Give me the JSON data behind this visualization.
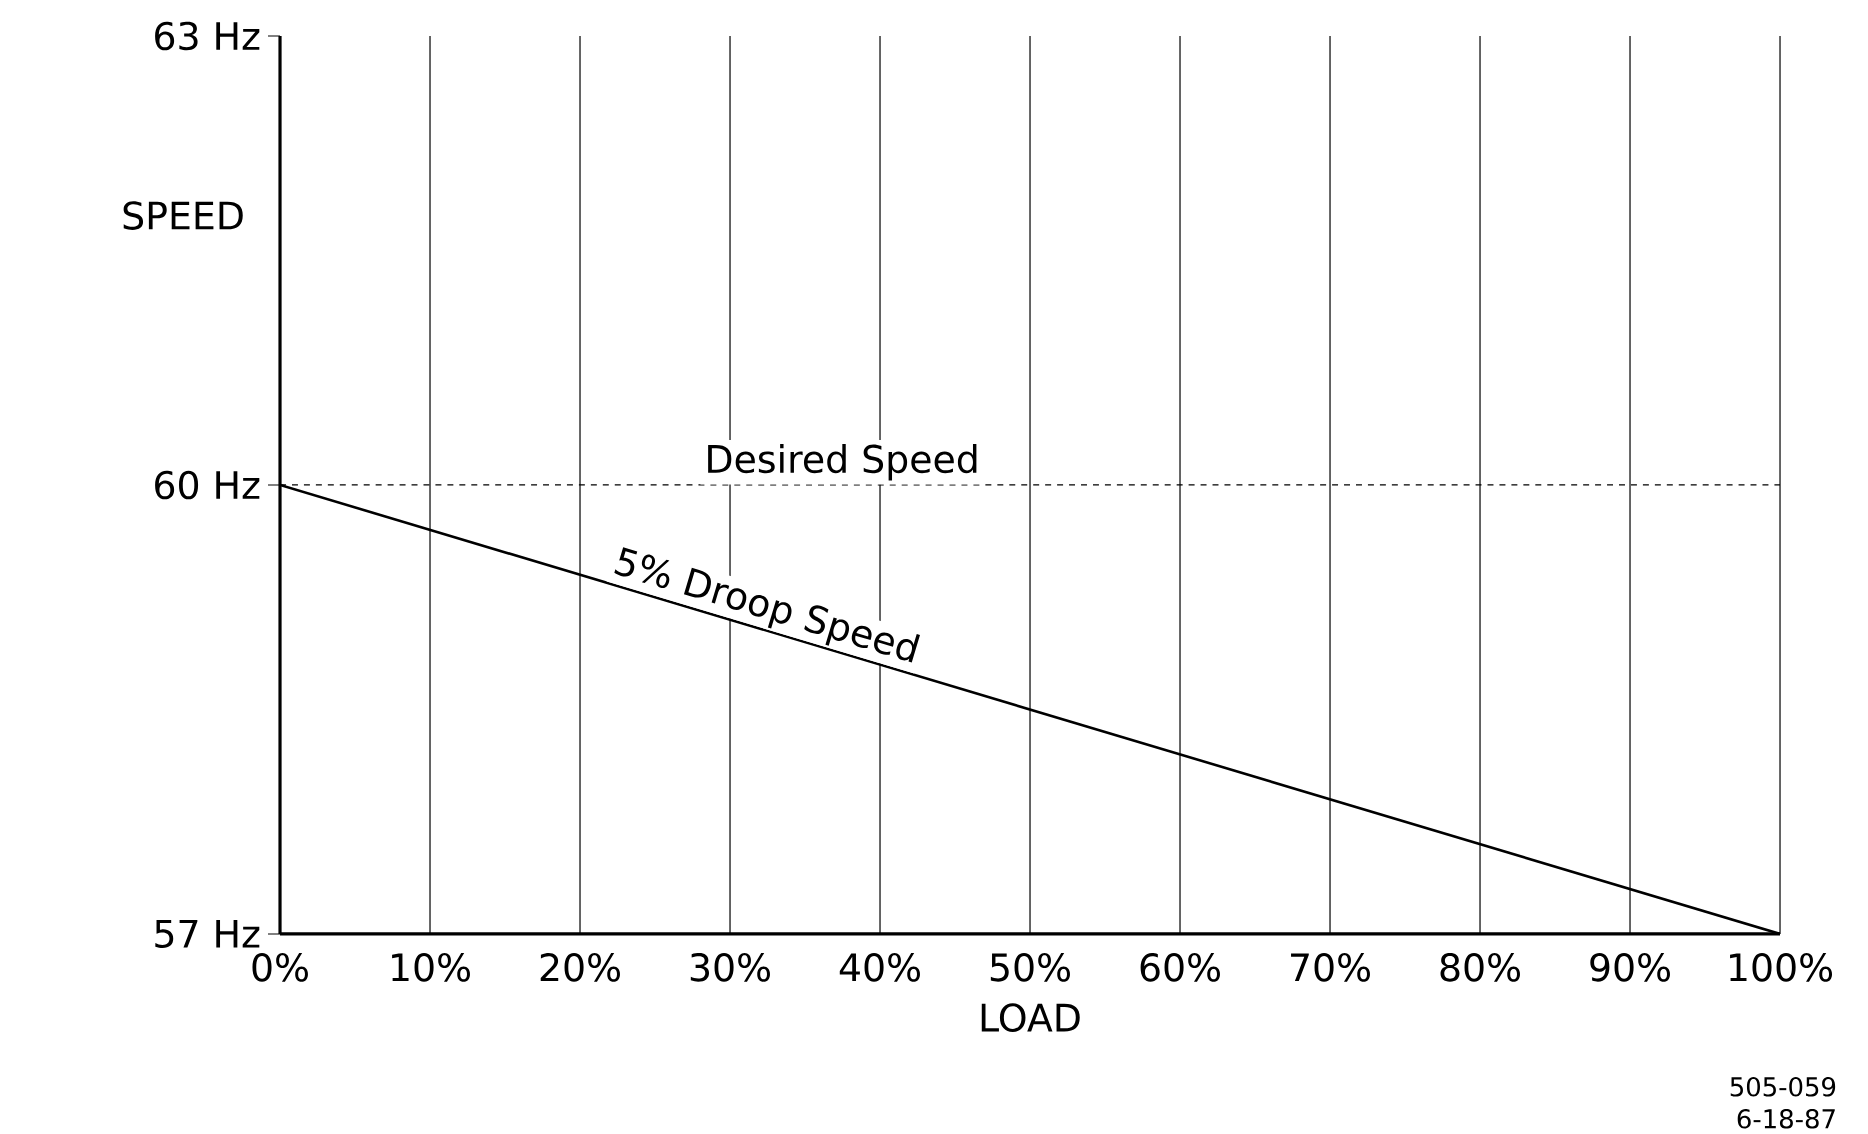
{
  "chart_data": {
    "type": "line",
    "xlabel": "LOAD",
    "ylabel": "SPEED",
    "x": [
      0,
      100
    ],
    "series": [
      {
        "name": "5% Droop Speed",
        "color": "#000000",
        "values": [
          60,
          57
        ],
        "line_style": "solid"
      }
    ],
    "xlim": [
      0,
      100
    ],
    "ylim": [
      57,
      63
    ],
    "xticks": [
      {
        "value": 0,
        "label": "0%"
      },
      {
        "value": 10,
        "label": "10%"
      },
      {
        "value": 20,
        "label": "20%"
      },
      {
        "value": 30,
        "label": "30%"
      },
      {
        "value": 40,
        "label": "40%"
      },
      {
        "value": 50,
        "label": "50%"
      },
      {
        "value": 60,
        "label": "60%"
      },
      {
        "value": 70,
        "label": "70%"
      },
      {
        "value": 80,
        "label": "80%"
      },
      {
        "value": 90,
        "label": "90%"
      },
      {
        "value": 100,
        "label": "100%"
      }
    ],
    "yticks": [
      {
        "value": 57,
        "label": "57 Hz"
      },
      {
        "value": 60,
        "label": "60 Hz"
      },
      {
        "value": 63,
        "label": "63 Hz"
      }
    ],
    "grid": "x",
    "ref_lines": [
      {
        "axis": "y",
        "value": 60,
        "label": "Desired Speed",
        "line_style": "dashed",
        "color": "#000000"
      }
    ],
    "annotations": [
      "505-059",
      "6-18-87"
    ]
  }
}
